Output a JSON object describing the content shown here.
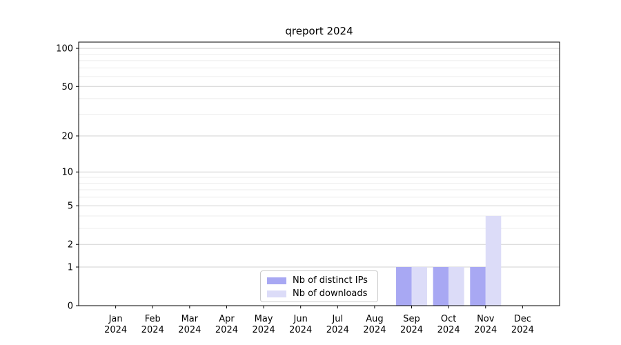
{
  "chart_data": {
    "type": "bar",
    "title": "qreport 2024",
    "categories": [
      "Jan",
      "Feb",
      "Mar",
      "Apr",
      "May",
      "Jun",
      "Jul",
      "Aug",
      "Sep",
      "Oct",
      "Nov",
      "Dec"
    ],
    "category_year": "2024",
    "series": [
      {
        "name": "Nb of distinct IPs",
        "color": "#a8a8f3",
        "values": [
          0,
          0,
          0,
          0,
          0,
          0,
          0,
          0,
          1,
          1,
          1,
          0
        ]
      },
      {
        "name": "Nb of downloads",
        "color": "#dcdcf8",
        "values": [
          0,
          0,
          0,
          0,
          0,
          0,
          0,
          0,
          1,
          1,
          4,
          0
        ]
      }
    ],
    "xlabel": "",
    "ylabel": "",
    "yscale": "log1p",
    "ylim": [
      0,
      112
    ],
    "yticks": [
      0,
      1,
      2,
      5,
      10,
      20,
      50,
      100
    ],
    "minor_gridlines": [
      3,
      4,
      6,
      7,
      8,
      9,
      30,
      40,
      60,
      70,
      80,
      90
    ],
    "grid": true,
    "legend_position": "inside-bottom-center"
  },
  "colors": {
    "major_gridline": "#d2d2d2",
    "minor_gridline": "#ececec",
    "axis": "#000000",
    "background": "#ffffff"
  }
}
